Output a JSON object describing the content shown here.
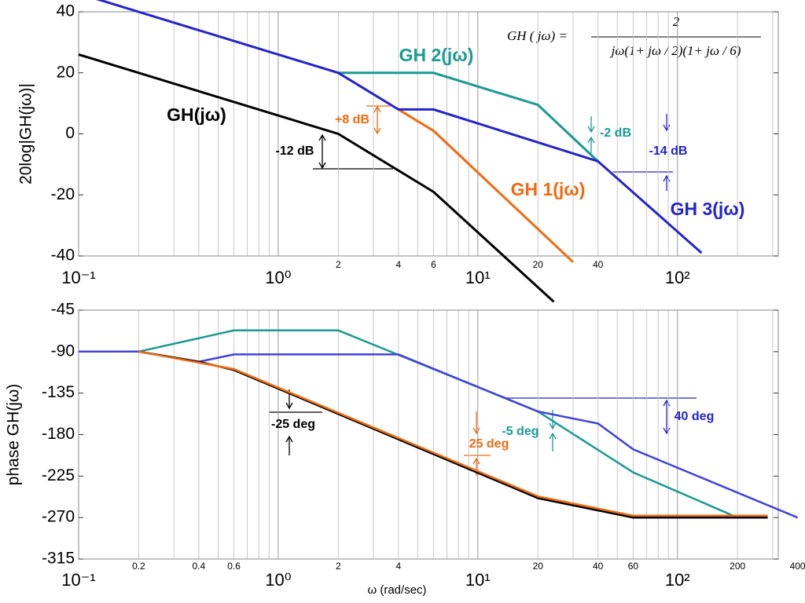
{
  "chart_data": [
    {
      "type": "line",
      "xscale": "log",
      "xlim": [
        0.1,
        320
      ],
      "ylim": [
        -40,
        40
      ],
      "yticks": [
        -40,
        -20,
        0,
        20,
        40
      ],
      "xticks": [
        {
          "value": 0.1,
          "label": "10⁻¹"
        },
        {
          "value": 1,
          "label": "10⁰"
        },
        {
          "value": 10,
          "label": "10¹"
        },
        {
          "value": 100,
          "label": "10²"
        }
      ],
      "xminor": [
        0.2,
        0.3,
        0.4,
        0.5,
        0.6,
        0.7,
        0.8,
        0.9,
        2,
        3,
        4,
        5,
        6,
        7,
        8,
        9,
        20,
        30,
        40,
        50,
        60,
        70,
        80,
        90,
        200,
        300
      ],
      "xminor_labels": [
        2,
        4,
        6,
        20,
        40
      ],
      "ylabel": "20log|GH(jω)|",
      "grid": true,
      "equation": {
        "lhs": "GH ( jω) =",
        "numerator": "2",
        "denominator": "jω(1+ jω / 2)(1+ jω / 6)"
      },
      "series": [
        {
          "name": "GH(jω)",
          "color": "#000000",
          "x": [
            0.1,
            2,
            6,
            24
          ],
          "values": [
            26,
            0,
            -19,
            -55
          ]
        },
        {
          "name": "GH 2(jω)",
          "color": "#1a9a92",
          "x": [
            2,
            6,
            20,
            40
          ],
          "values": [
            20,
            20,
            9.5,
            -9
          ]
        },
        {
          "name": "GH 1(jω)",
          "color": "#f06a10",
          "x": [
            4,
            6,
            30
          ],
          "values": [
            8,
            1,
            -42
          ]
        },
        {
          "name": "GH 3(jω)",
          "color": "#2323cc",
          "x": [
            0.1,
            2,
            4,
            6,
            40,
            132
          ],
          "values": [
            46,
            20,
            8,
            8,
            -9,
            -39
          ]
        }
      ],
      "annotations": [
        {
          "text": "+8 dB",
          "color": "#f06a10"
        },
        {
          "text": "-12 dB",
          "color": "#000000"
        },
        {
          "text": "-2 dB",
          "color": "#1a9a92"
        },
        {
          "text": "-14 dB",
          "color": "#2323cc"
        }
      ]
    },
    {
      "type": "line",
      "xscale": "log",
      "xlim": [
        0.1,
        320
      ],
      "ylim": [
        -315,
        -45
      ],
      "yticks": [
        -315,
        -270,
        -225,
        -180,
        -135,
        -90,
        -45
      ],
      "xticks": [
        {
          "value": 0.1,
          "label": "10⁻¹"
        },
        {
          "value": 1,
          "label": "10⁰"
        },
        {
          "value": 10,
          "label": "10¹"
        },
        {
          "value": 100,
          "label": "10²"
        }
      ],
      "xminor": [
        0.2,
        0.3,
        0.4,
        0.5,
        0.6,
        0.7,
        0.8,
        0.9,
        2,
        3,
        4,
        5,
        6,
        7,
        8,
        9,
        20,
        30,
        40,
        50,
        60,
        70,
        80,
        90,
        200,
        300
      ],
      "xminor_labels": [
        0.2,
        0.4,
        0.6,
        2,
        4,
        20,
        40,
        60,
        200,
        400
      ],
      "ylabel": "phase GH(jω)",
      "xlabel": "ω (rad/sec)",
      "grid": true,
      "series": [
        {
          "color": "#1a9a92",
          "x": [
            0.1,
            0.2,
            0.6,
            2,
            20,
            60,
            200,
            283
          ],
          "values": [
            -90,
            -90,
            -67,
            -67,
            -155,
            -221,
            -270,
            -270
          ]
        },
        {
          "color": "#4040dd",
          "x": [
            0.1,
            0.2,
            0.4,
            0.6,
            4,
            20,
            40,
            60,
            400
          ],
          "values": [
            -90,
            -90,
            -101,
            -93,
            -93,
            -155,
            -168,
            -196,
            -270
          ]
        },
        {
          "color": "#000000",
          "x": [
            0.2,
            0.4,
            0.6,
            20,
            60,
            283
          ],
          "values": [
            -90,
            -101,
            -110,
            -249,
            -270,
            -270
          ]
        },
        {
          "color": "#f06a10",
          "x": [
            0.2,
            0.6,
            20,
            60,
            283
          ],
          "values": [
            -90,
            -109,
            -247,
            -268,
            -268
          ]
        }
      ],
      "annotations": [
        {
          "text": "-25 deg",
          "color": "#000000"
        },
        {
          "text": "25 deg",
          "color": "#f06a10"
        },
        {
          "text": "-5 deg",
          "color": "#1a9a92"
        },
        {
          "text": "40 deg",
          "color": "#2323cc"
        }
      ]
    }
  ]
}
